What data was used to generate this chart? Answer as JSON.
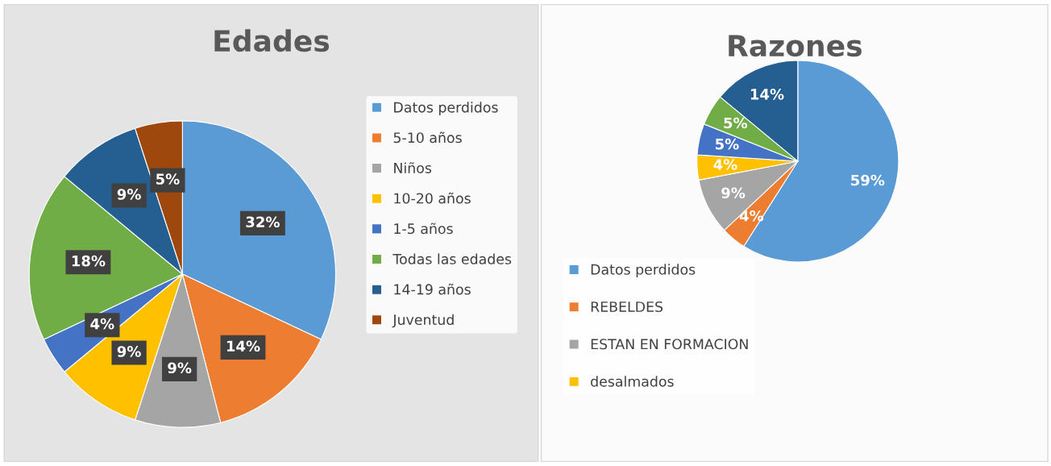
{
  "chart_data": [
    {
      "type": "pie",
      "title": "Edades",
      "categories": [
        "Datos perdidos",
        "5-10 años",
        "Niños",
        "10-20 años",
        "1-5 años",
        "Todas las edades",
        "14-19 años",
        "Juventud"
      ],
      "values": [
        32,
        14,
        9,
        9,
        4,
        18,
        9,
        5
      ],
      "colors": [
        "#5b9bd5",
        "#ed7d31",
        "#a5a5a5",
        "#ffc000",
        "#4472c4",
        "#70ad47",
        "#255e91",
        "#9e480e"
      ],
      "value_labels": [
        "32%",
        "14%",
        "9%",
        "9%",
        "4%",
        "18%",
        "9%",
        "5%"
      ],
      "legend": "right"
    },
    {
      "type": "pie",
      "title": "Razones",
      "categories": [
        "Datos perdidos",
        "REBELDES",
        "ESTAN EN FORMACION",
        "desalmados",
        null,
        null,
        null
      ],
      "values": [
        59,
        4,
        9,
        4,
        5,
        5,
        14
      ],
      "colors": [
        "#5b9bd5",
        "#ed7d31",
        "#a5a5a5",
        "#ffc000",
        "#4472c4",
        "#70ad47",
        "#255e91"
      ],
      "value_labels": [
        "59%",
        "4%",
        "9%",
        "4%",
        "5%",
        "5%",
        "14%"
      ],
      "legend": "bottom"
    }
  ]
}
